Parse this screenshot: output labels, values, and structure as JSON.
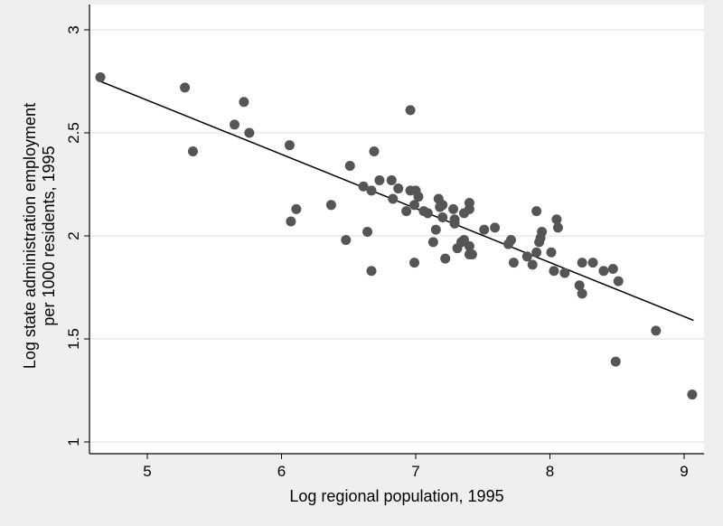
{
  "chart_data": {
    "type": "scatter",
    "title": "",
    "xlabel": "Log regional population, 1995",
    "ylabel_lines": [
      "Log state administration employment",
      "per 1000 residents, 1995"
    ],
    "xlim": [
      4.6,
      9.15
    ],
    "ylim": [
      0.9,
      3.15
    ],
    "xticks": [
      5,
      6,
      7,
      8,
      9
    ],
    "xtick_labels": [
      "5",
      "6",
      "7",
      "8",
      "9"
    ],
    "yticks": [
      1,
      1.5,
      2,
      2.5,
      3
    ],
    "ytick_labels": [
      "1",
      "1.5",
      "2",
      "2.5",
      "3"
    ],
    "grid": "horizontal",
    "marker_color": "#555555",
    "line_color": "#000000",
    "fit_line": {
      "x": [
        4.65,
        9.07
      ],
      "y": [
        2.75,
        1.59
      ]
    },
    "points": [
      [
        4.65,
        2.77
      ],
      [
        5.28,
        2.72
      ],
      [
        5.34,
        2.41
      ],
      [
        5.72,
        2.65
      ],
      [
        5.65,
        2.54
      ],
      [
        5.76,
        2.5
      ],
      [
        6.06,
        2.44
      ],
      [
        6.07,
        2.07
      ],
      [
        6.11,
        2.13
      ],
      [
        6.37,
        2.15
      ],
      [
        6.51,
        2.34
      ],
      [
        6.48,
        1.98
      ],
      [
        6.61,
        2.24
      ],
      [
        6.64,
        2.02
      ],
      [
        6.67,
        2.22
      ],
      [
        6.69,
        2.41
      ],
      [
        6.67,
        1.83
      ],
      [
        6.73,
        2.27
      ],
      [
        6.82,
        2.27
      ],
      [
        6.83,
        2.18
      ],
      [
        6.87,
        2.23
      ],
      [
        6.93,
        2.12
      ],
      [
        6.96,
        2.61
      ],
      [
        6.96,
        2.22
      ],
      [
        7.0,
        2.22
      ],
      [
        6.99,
        2.15
      ],
      [
        7.02,
        2.19
      ],
      [
        6.99,
        1.87
      ],
      [
        7.06,
        2.12
      ],
      [
        7.09,
        2.11
      ],
      [
        7.13,
        1.97
      ],
      [
        7.15,
        2.03
      ],
      [
        7.17,
        2.18
      ],
      [
        7.18,
        2.14
      ],
      [
        7.2,
        2.15
      ],
      [
        7.2,
        2.09
      ],
      [
        7.22,
        1.89
      ],
      [
        7.28,
        2.13
      ],
      [
        7.29,
        2.08
      ],
      [
        7.29,
        2.06
      ],
      [
        7.31,
        1.94
      ],
      [
        7.34,
        1.97
      ],
      [
        7.36,
        1.98
      ],
      [
        7.36,
        2.11
      ],
      [
        7.4,
        2.16
      ],
      [
        7.4,
        2.13
      ],
      [
        7.4,
        1.95
      ],
      [
        7.4,
        1.91
      ],
      [
        7.42,
        1.91
      ],
      [
        7.51,
        2.03
      ],
      [
        7.59,
        2.04
      ],
      [
        7.69,
        1.96
      ],
      [
        7.71,
        1.98
      ],
      [
        7.73,
        1.87
      ],
      [
        7.83,
        1.9
      ],
      [
        7.87,
        1.86
      ],
      [
        7.9,
        2.12
      ],
      [
        7.9,
        1.92
      ],
      [
        7.92,
        1.97
      ],
      [
        7.93,
        1.99
      ],
      [
        7.94,
        2.02
      ],
      [
        8.01,
        1.92
      ],
      [
        8.03,
        1.83
      ],
      [
        8.05,
        2.08
      ],
      [
        8.06,
        2.04
      ],
      [
        8.11,
        1.82
      ],
      [
        8.22,
        1.76
      ],
      [
        8.24,
        1.87
      ],
      [
        8.24,
        1.72
      ],
      [
        8.32,
        1.87
      ],
      [
        8.4,
        1.83
      ],
      [
        8.47,
        1.84
      ],
      [
        8.49,
        1.39
      ],
      [
        8.51,
        1.78
      ],
      [
        8.79,
        1.54
      ],
      [
        9.06,
        1.23
      ]
    ]
  }
}
